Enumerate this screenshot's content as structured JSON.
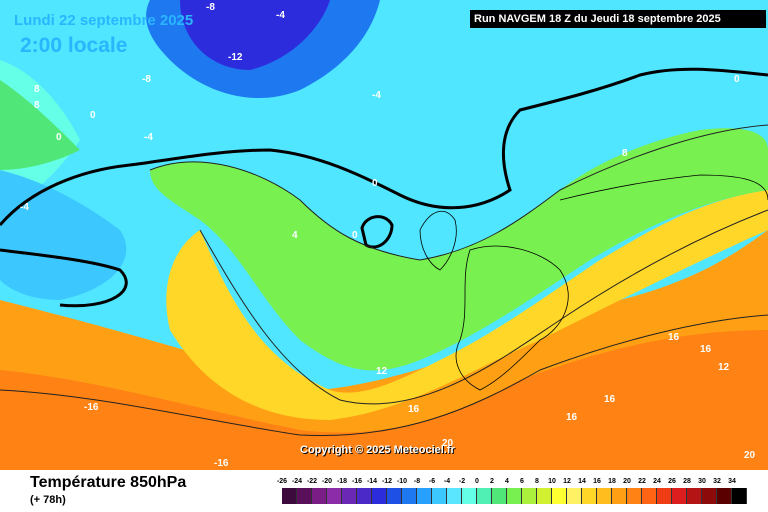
{
  "header": {
    "date_title": "Lundi 22 septembre 2025",
    "time_title": "2:00 locale",
    "run_label": "Run NAVGEM 18 Z du Jeudi 18 septembre 2025"
  },
  "map": {
    "contour_labels": [
      "-8",
      "-4",
      "-12",
      "-8",
      "-4",
      "-4",
      "0",
      "-4",
      "0",
      "4",
      "0",
      "0",
      "8",
      "8",
      "12",
      "16",
      "16",
      "16",
      "16",
      "12",
      "20",
      "20",
      "-16",
      "-16",
      "0",
      "8",
      "16"
    ],
    "copyright": "Copyright © 2025 Meteociel.fr"
  },
  "footer": {
    "variable_title": "Température 850hPa",
    "lead_time": "(+ 78h)"
  },
  "legend": {
    "ticks": [
      "-26",
      "-24",
      "-22",
      "-20",
      "-18",
      "-16",
      "-14",
      "-12",
      "-10",
      "-8",
      "-6",
      "-4",
      "-2",
      "0",
      "2",
      "4",
      "6",
      "8",
      "10",
      "12",
      "14",
      "16",
      "18",
      "20",
      "22",
      "24",
      "26",
      "28",
      "30",
      "32",
      "34"
    ],
    "colors": [
      "#3c0a3c",
      "#5a0f5a",
      "#7a1e86",
      "#8c2ca8",
      "#6a28b4",
      "#4b28c8",
      "#2c2cdc",
      "#1e50e6",
      "#1e78f0",
      "#28a0ff",
      "#3cc8ff",
      "#5ae6ff",
      "#64ffe6",
      "#50f0b4",
      "#50e678",
      "#78f050",
      "#aaf03c",
      "#d2f032",
      "#ffff32",
      "#fff064",
      "#ffd728",
      "#ffbe1e",
      "#ffa014",
      "#ff8214",
      "#ff6414",
      "#f03c14",
      "#dc1e1e",
      "#b41414",
      "#8c0a0a",
      "#5a0000",
      "#000000"
    ]
  }
}
